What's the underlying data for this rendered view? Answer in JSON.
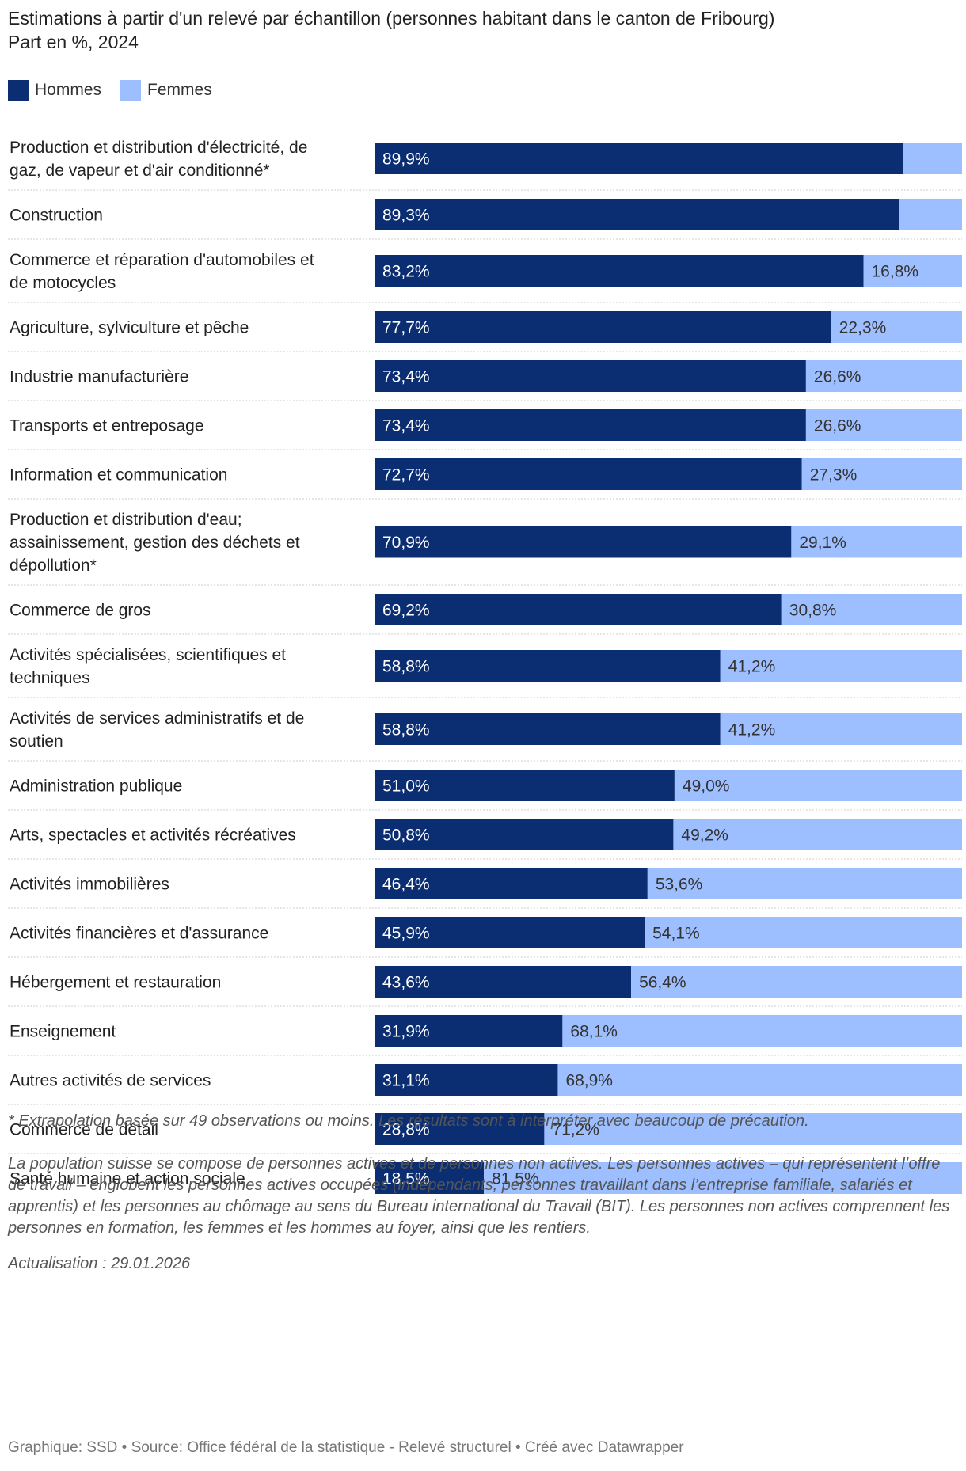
{
  "title_line1": "Estimations à partir d'un relevé par échantillon (personnes habitant dans le canton de Fribourg)",
  "title_line2": "Part en %, 2024",
  "colors": {
    "hommes": "#0b2d72",
    "femmes": "#9dbfff",
    "separator": "#cccccc"
  },
  "chart_data": {
    "type": "bar",
    "orientation": "horizontal",
    "stacked": true,
    "xlim": [
      0,
      100
    ],
    "legend": [
      "Hommes",
      "Femmes"
    ],
    "categories": [
      [
        "Production et distribution d'électricité, de",
        "gaz, de vapeur et d'air conditionné*"
      ],
      [
        "Construction"
      ],
      [
        "Commerce et réparation d'automobiles et",
        "de motocycles"
      ],
      [
        "Agriculture, sylviculture et pêche"
      ],
      [
        "Industrie manufacturière"
      ],
      [
        "Transports et entreposage"
      ],
      [
        "Information et communication"
      ],
      [
        "Production et distribution d'eau;",
        "assainissement, gestion des déchets et",
        "dépollution*"
      ],
      [
        "Commerce de gros"
      ],
      [
        "Activités spécialisées, scientifiques et",
        "techniques"
      ],
      [
        "Activités de services administratifs et de",
        "soutien"
      ],
      [
        "Administration publique"
      ],
      [
        "Arts, spectacles et activités récréatives"
      ],
      [
        "Activités immobilières"
      ],
      [
        "Activités financières et d'assurance"
      ],
      [
        "Hébergement et restauration"
      ],
      [
        "Enseignement"
      ],
      [
        "Autres activités de services"
      ],
      [
        "Commerce de détail"
      ],
      [
        "Santé humaine et action sociale"
      ]
    ],
    "series": [
      {
        "name": "Hommes",
        "values": [
          89.9,
          89.3,
          83.2,
          77.7,
          73.4,
          73.4,
          72.7,
          70.9,
          69.2,
          58.8,
          58.8,
          51.0,
          50.8,
          46.4,
          45.9,
          43.6,
          31.9,
          31.1,
          28.8,
          18.5
        ],
        "labels": [
          "89,9%",
          "89,3%",
          "83,2%",
          "77,7%",
          "73,4%",
          "73,4%",
          "72,7%",
          "70,9%",
          "69,2%",
          "58,8%",
          "58,8%",
          "51,0%",
          "50,8%",
          "46,4%",
          "45,9%",
          "43,6%",
          "31,9%",
          "31,1%",
          "28,8%",
          "18,5%"
        ]
      },
      {
        "name": "Femmes",
        "values": [
          10.1,
          10.7,
          16.8,
          22.3,
          26.6,
          26.6,
          27.3,
          29.1,
          30.8,
          41.2,
          41.2,
          49.0,
          49.2,
          53.6,
          54.1,
          56.4,
          68.1,
          68.9,
          71.2,
          81.5
        ],
        "labels": [
          "",
          "",
          "16,8%",
          "22,3%",
          "26,6%",
          "26,6%",
          "27,3%",
          "29,1%",
          "30,8%",
          "41,2%",
          "41,2%",
          "49,0%",
          "49,2%",
          "53,6%",
          "54,1%",
          "56,4%",
          "68,1%",
          "68,9%",
          "71,2%",
          "81,5%"
        ]
      }
    ]
  },
  "note_asterisk": "* Extrapolation basée sur 49 observations ou moins. Les résultats sont à interpréter avec beaucoup de précaution.",
  "note_population": "La population suisse se compose de personnes actives et de personnes non actives. Les personnes actives – qui représentent l’offre de travail – englobent les personnes actives occupées (indépendants, personnes travaillant dans l’entreprise familiale, salariés et apprentis) et les personnes au chômage au sens du Bureau international du Travail (BIT). Les personnes non actives comprennent les personnes en formation, les femmes et les hommes au foyer, ainsi que les rentiers.",
  "update": "Actualisation : 29.01.2026",
  "footer": "Graphique: SSD • Source: Office fédéral de la statistique - Relevé structurel • Créé avec Datawrapper"
}
